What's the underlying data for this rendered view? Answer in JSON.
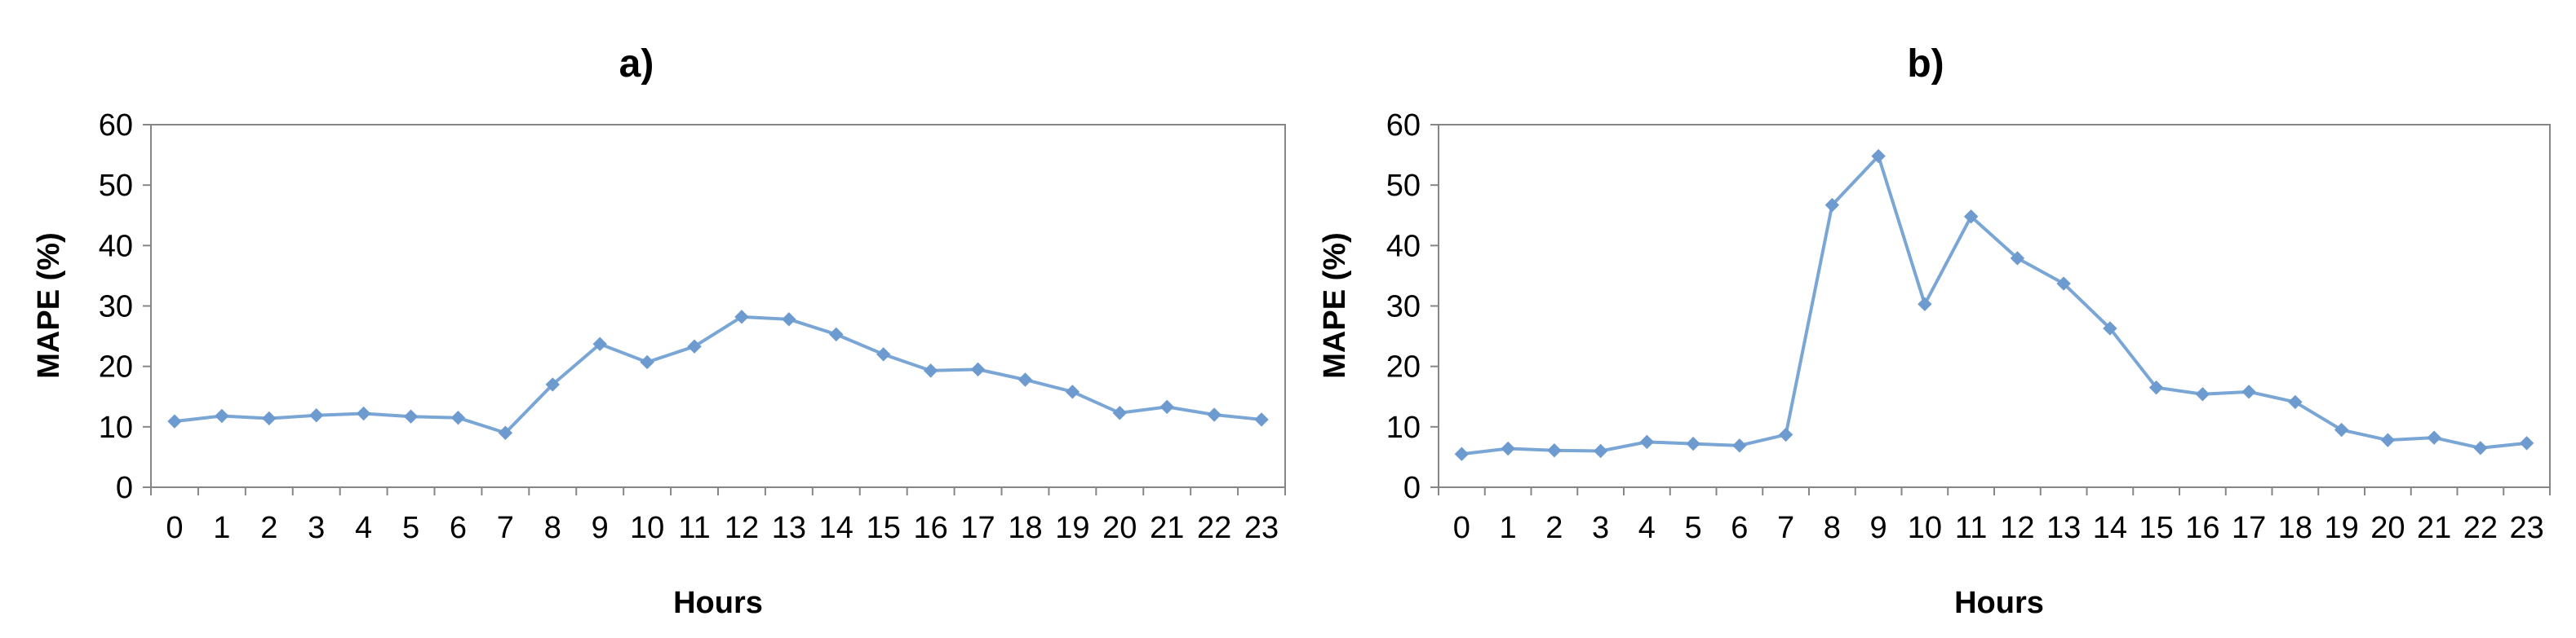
{
  "chart_data": [
    {
      "panel": "a",
      "type": "line",
      "title": "a)",
      "xlabel": "Hours",
      "ylabel": "MAPE (%)",
      "ylim": [
        0,
        60
      ],
      "yticks": [
        "0",
        "10",
        "20",
        "30",
        "40",
        "50",
        "60"
      ],
      "categories": [
        "0",
        "1",
        "2",
        "3",
        "4",
        "5",
        "6",
        "7",
        "8",
        "9",
        "10",
        "11",
        "12",
        "13",
        "14",
        "15",
        "16",
        "17",
        "18",
        "19",
        "20",
        "21",
        "22",
        "23"
      ],
      "values": [
        10.9,
        11.8,
        11.4,
        11.9,
        12.2,
        11.7,
        11.5,
        9.0,
        17.0,
        23.7,
        20.7,
        23.3,
        28.2,
        27.8,
        25.3,
        22.0,
        19.3,
        19.5,
        17.8,
        15.8,
        12.3,
        13.3,
        12.0,
        11.2
      ],
      "colors": {
        "line": "#7aa6d5",
        "marker": "#6e9bcf"
      },
      "grid": false,
      "legend": "none"
    },
    {
      "panel": "b",
      "type": "line",
      "title": "b)",
      "xlabel": "Hours",
      "ylabel": "MAPE (%)",
      "ylim": [
        0,
        60
      ],
      "yticks": [
        "0",
        "10",
        "20",
        "30",
        "40",
        "50",
        "60"
      ],
      "categories": [
        "0",
        "1",
        "2",
        "3",
        "4",
        "5",
        "6",
        "7",
        "8",
        "9",
        "10",
        "11",
        "12",
        "13",
        "14",
        "15",
        "16",
        "17",
        "18",
        "19",
        "20",
        "21",
        "22",
        "23"
      ],
      "values": [
        5.5,
        6.4,
        6.1,
        6.0,
        7.5,
        7.2,
        6.9,
        8.7,
        46.7,
        54.8,
        30.3,
        44.8,
        37.9,
        33.7,
        26.3,
        16.5,
        15.4,
        15.8,
        14.1,
        9.5,
        7.8,
        8.2,
        6.5,
        7.3
      ],
      "colors": {
        "line": "#7aa6d5",
        "marker": "#6e9bcf"
      },
      "grid": false,
      "legend": "none"
    }
  ]
}
